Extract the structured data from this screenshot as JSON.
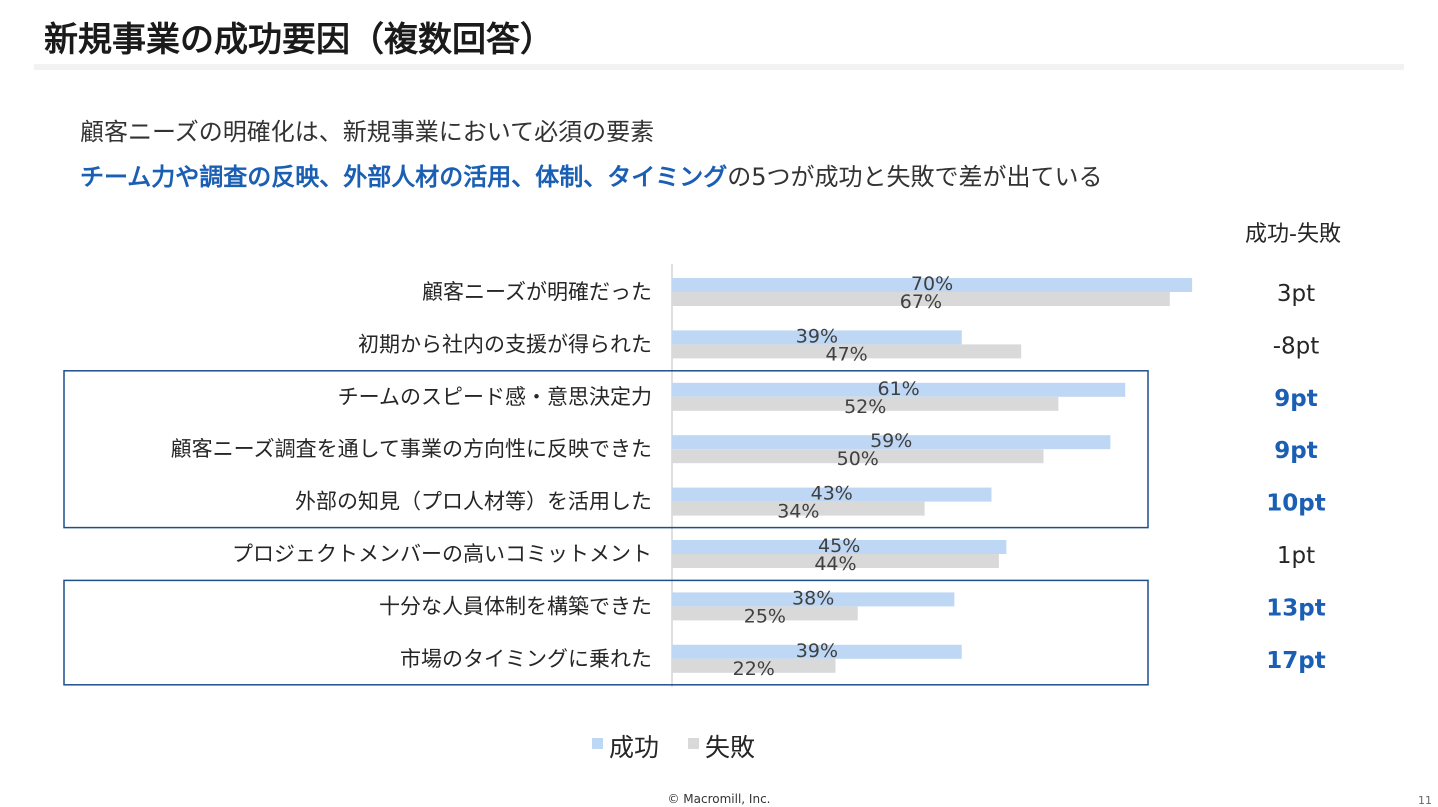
{
  "slide": {
    "title": "新規事業の成功要因（複数回答）",
    "subtitle_line1": "顧客ニーズの明確化は、新規事業において必須の要素",
    "subtitle_line2_highlight": "チーム力や調査の反映、外部人材の活用、体制、タイミング",
    "subtitle_line2_rest": "の5つが成功と失敗で差が出ている",
    "diff_header": "成功-失敗",
    "footer": "© Macromill, Inc.",
    "page_number": "11"
  },
  "colors": {
    "success": "#bdd7f4",
    "failure": "#d9d9d9",
    "highlight": "#1a5fb4",
    "box_border": "#1f4e8c"
  },
  "chart_data": {
    "type": "bar",
    "orientation": "horizontal",
    "categories": [
      "顧客ニーズが明確だった",
      "初期から社内の支援が得られた",
      "チームのスピード感・意思決定力",
      "顧客ニーズ調査を通して事業の方向性に反映できた",
      "外部の知見（プロ人材等）を活用した",
      "プロジェクトメンバーの高いコミットメント",
      "十分な人員体制を構築できた",
      "市場のタイミングに乗れた"
    ],
    "series": [
      {
        "name": "成功",
        "values": [
          70,
          39,
          61,
          59,
          43,
          45,
          38,
          39
        ],
        "labels": [
          "70%",
          "39%",
          "61%",
          "59%",
          "43%",
          "45%",
          "38%",
          "39%"
        ]
      },
      {
        "name": "失敗",
        "values": [
          67,
          47,
          52,
          50,
          34,
          44,
          25,
          22
        ],
        "labels": [
          "67%",
          "47%",
          "52%",
          "50%",
          "34%",
          "44%",
          "25%",
          "22%"
        ]
      }
    ],
    "differences": [
      "3pt",
      "-8pt",
      "9pt",
      "9pt",
      "10pt",
      "1pt",
      "13pt",
      "17pt"
    ],
    "highlighted": [
      false,
      false,
      true,
      true,
      true,
      false,
      true,
      true
    ],
    "highlight_groups": [
      [
        2,
        4
      ],
      [
        6,
        7
      ]
    ],
    "xlim": [
      0,
      100
    ],
    "legend": {
      "position": "bottom",
      "entries": [
        "成功",
        "失敗"
      ]
    },
    "grid": false
  }
}
